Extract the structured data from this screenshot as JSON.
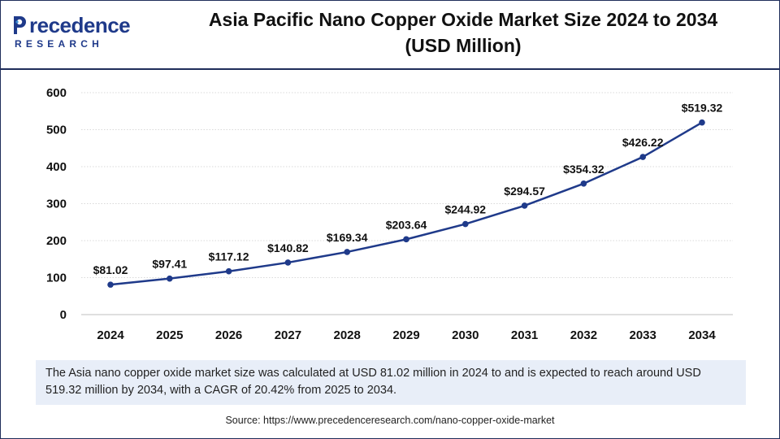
{
  "header": {
    "logo_top": "recedence",
    "logo_bottom": "RESEARCH",
    "title_line1": "Asia Pacific Nano Copper Oxide Market Size 2024 to 2034",
    "title_line2": "(USD Million)"
  },
  "colors": {
    "line": "#1f3a8a",
    "brand": "#1f3a8a",
    "gridline": "#d9d9d9",
    "note_bg": "#e8eef8"
  },
  "chart_data": {
    "type": "line",
    "title": "",
    "xlabel": "",
    "ylabel": "",
    "ylim": [
      0,
      600
    ],
    "yticks": [
      0,
      100,
      200,
      300,
      400,
      500,
      600
    ],
    "grid": true,
    "categories": [
      "2024",
      "2025",
      "2026",
      "2027",
      "2028",
      "2029",
      "2030",
      "2031",
      "2032",
      "2033",
      "2034"
    ],
    "series": [
      {
        "values": [
          81.02,
          97.41,
          117.12,
          140.82,
          169.34,
          203.64,
          244.92,
          294.57,
          354.32,
          426.22,
          519.32
        ],
        "labels": [
          "$81.02",
          "$97.41",
          "$117.12",
          "$140.82",
          "$169.34",
          "$203.64",
          "$244.92",
          "$294.57",
          "$354.32",
          "$426.22",
          "$519.32"
        ]
      }
    ]
  },
  "note": "The Asia nano copper oxide market size was calculated at USD 81.02 million in 2024 to and is expected to reach around USD 519.32 million by 2034, with a CAGR of 20.42% from 2025 to 2034.",
  "source": "Source: https://www.precedenceresearch.com/nano-copper-oxide-market"
}
